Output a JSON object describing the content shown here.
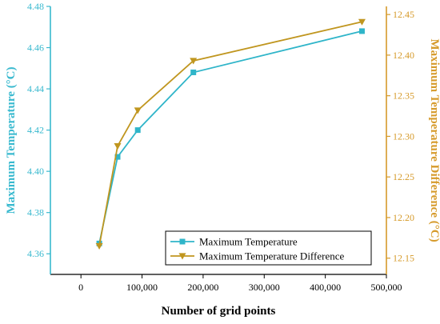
{
  "chart_data": {
    "type": "line",
    "xlabel": "Number of grid points",
    "ylabel_left": "Maximum Temperature (°C)",
    "ylabel_right": "Maximum Temperature Difference (°C)",
    "xlim": [
      -50000,
      500000
    ],
    "ylim_left": [
      4.35,
      4.48
    ],
    "ylim_right": [
      12.13,
      12.46
    ],
    "x_ticks": [
      0,
      100000,
      200000,
      300000,
      400000,
      500000
    ],
    "x_tick_labels": [
      "0",
      "100,000",
      "200,000",
      "300,000",
      "400,000",
      "500,000"
    ],
    "y_left_ticks": [
      4.36,
      4.38,
      4.4,
      4.42,
      4.44,
      4.46,
      4.48
    ],
    "y_left_tick_labels": [
      "4.36",
      "4.38",
      "4.40",
      "4.42",
      "4.44",
      "4.46",
      "4.48"
    ],
    "y_right_ticks": [
      12.15,
      12.2,
      12.25,
      12.3,
      12.35,
      12.4,
      12.45
    ],
    "y_right_tick_labels": [
      "12.15",
      "12.20",
      "12.25",
      "12.30",
      "12.35",
      "12.40",
      "12.45"
    ],
    "grid": false,
    "legend_position": "bottom-right",
    "series": [
      {
        "name": "Maximum Temperature",
        "axis": "left",
        "marker": "square",
        "color": "#2fb5c9",
        "x": [
          30000,
          60000,
          93000,
          184000,
          460000
        ],
        "y": [
          4.365,
          4.407,
          4.42,
          4.448,
          4.468
        ]
      },
      {
        "name": "Maximum Temperature Difference",
        "axis": "right",
        "marker": "triangle-down",
        "color": "#c0961f",
        "x": [
          30000,
          60000,
          93000,
          184000,
          460000
        ],
        "y": [
          12.165,
          12.288,
          12.332,
          12.393,
          12.441
        ]
      }
    ]
  },
  "colors": {
    "left_axis": "#38b9cf",
    "right_axis": "#d69a2a",
    "frame": "#000000"
  }
}
